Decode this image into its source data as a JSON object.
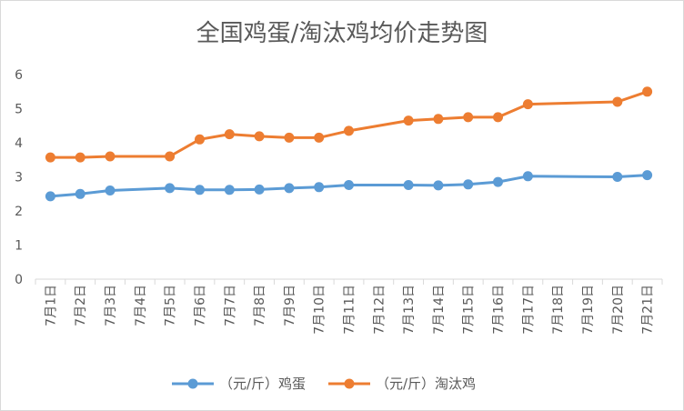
{
  "chart_data": {
    "type": "line",
    "title": "全国鸡蛋/淘汰鸡均价走势图",
    "xlabel": "",
    "ylabel": "",
    "categories": [
      "7月1日",
      "7月2日",
      "7月3日",
      "7月4日",
      "7月5日",
      "7月6日",
      "7月7日",
      "7月8日",
      "7月9日",
      "7月10日",
      "7月11日",
      "7月12日",
      "7月13日",
      "7月14日",
      "7月15日",
      "7月16日",
      "7月17日",
      "7月18日",
      "7月19日",
      "7月20日",
      "7月21日"
    ],
    "ylim": [
      0,
      6
    ],
    "yticks": [
      0,
      1,
      2,
      3,
      4,
      5,
      6
    ],
    "grid": false,
    "legend": "bottom",
    "series": [
      {
        "name": "（元/斤）鸡蛋",
        "color": "#5b9bd5",
        "values": [
          2.43,
          2.5,
          2.6,
          null,
          2.67,
          2.62,
          2.62,
          2.63,
          2.67,
          2.7,
          2.76,
          null,
          2.76,
          2.75,
          2.78,
          2.85,
          3.02,
          null,
          null,
          3.0,
          3.05
        ]
      },
      {
        "name": "（元/斤）淘汰鸡",
        "color": "#ed7d31",
        "values": [
          3.57,
          3.57,
          3.6,
          null,
          3.6,
          4.1,
          4.25,
          4.19,
          4.15,
          4.15,
          4.35,
          null,
          4.65,
          4.7,
          4.75,
          4.75,
          5.13,
          null,
          null,
          5.2,
          5.5
        ]
      }
    ]
  }
}
